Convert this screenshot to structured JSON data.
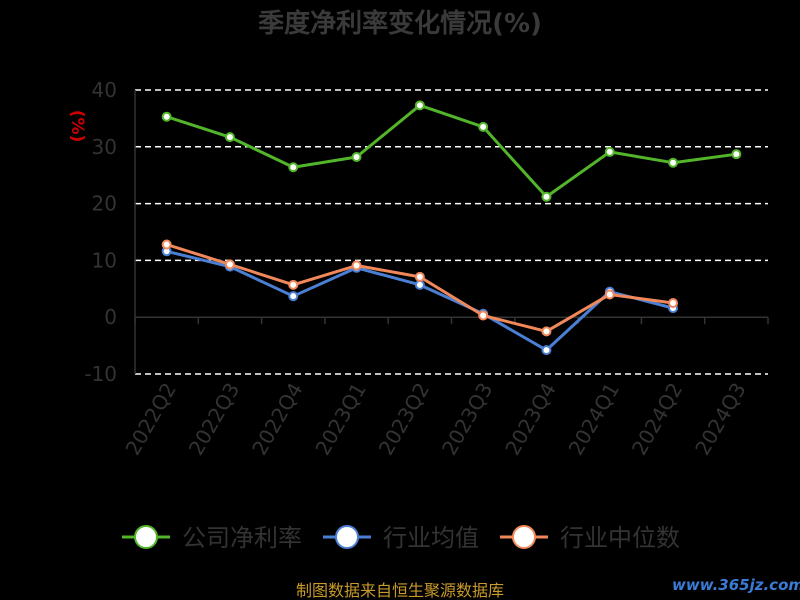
{
  "chart_data": {
    "type": "line",
    "title": "季度净利率变化情况(%)",
    "unit_label": "(%)",
    "categories": [
      "2022Q2",
      "2022Q3",
      "2022Q4",
      "2023Q1",
      "2023Q2",
      "2023Q3",
      "2023Q4",
      "2024Q1",
      "2024Q2",
      "2024Q3"
    ],
    "ylim": [
      -10,
      40
    ],
    "yticks": [
      -10,
      0,
      10,
      20,
      30,
      40
    ],
    "grid": true,
    "legend_position": "bottom",
    "series": [
      {
        "name": "公司净利率",
        "color": "#52b52a",
        "values": [
          35.3,
          31.7,
          26.4,
          28.2,
          37.3,
          33.5,
          21.2,
          29.1,
          27.2,
          28.7
        ]
      },
      {
        "name": "行业均值",
        "color": "#4a7fd4",
        "values": [
          11.6,
          8.9,
          3.7,
          8.7,
          5.7,
          0.6,
          -5.8,
          4.5,
          1.6,
          null
        ]
      },
      {
        "name": "行业中位数",
        "color": "#f0885a",
        "values": [
          12.8,
          9.3,
          5.7,
          9.1,
          7.1,
          0.3,
          -2.5,
          4.0,
          2.5,
          null
        ]
      }
    ]
  },
  "footer": {
    "source": "制图数据来自恒生聚源数据库",
    "watermark": "www.365jz.com"
  }
}
